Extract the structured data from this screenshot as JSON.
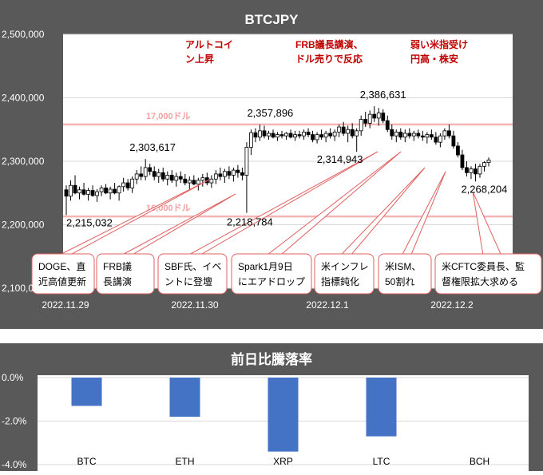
{
  "chart_data": [
    {
      "type": "candlestick",
      "title": "BTCJPY",
      "ylim": [
        2100000,
        2500000
      ],
      "yticks": [
        "2,100,000",
        "2,200,000",
        "2,300,000",
        "2,400,000",
        "2,500,000"
      ],
      "xticks": [
        "2022.11.29",
        "2022.11.30",
        "2022.12.1",
        "2022.12.2"
      ],
      "reference_lines": [
        {
          "label": "17,000ドル",
          "value": 2358000
        },
        {
          "label": "16,000ドル",
          "value": 2213000
        }
      ],
      "labeled_prices": [
        {
          "text": "2,215,032",
          "value": 2215032,
          "index": 0,
          "side": "low"
        },
        {
          "text": "2,303,617",
          "value": 2303617,
          "index": 18,
          "side": "high"
        },
        {
          "text": "2,218,784",
          "value": 2218784,
          "index": 41,
          "side": "low"
        },
        {
          "text": "2,357,896",
          "value": 2357896,
          "index": 44,
          "side": "high"
        },
        {
          "text": "2,314,943",
          "value": 2314943,
          "index": 66,
          "side": "low"
        },
        {
          "text": "2,386,631",
          "value": 2386631,
          "index": 70,
          "side": "high"
        },
        {
          "text": "2,268,204",
          "value": 2268204,
          "index": 93,
          "side": "low"
        }
      ],
      "candles": [
        [
          2255000,
          2262000,
          2215032,
          2245000
        ],
        [
          2245000,
          2270000,
          2238000,
          2262000
        ],
        [
          2262000,
          2278000,
          2248000,
          2250000
        ],
        [
          2250000,
          2260000,
          2240000,
          2255000
        ],
        [
          2255000,
          2266000,
          2246000,
          2248000
        ],
        [
          2248000,
          2258000,
          2238000,
          2254000
        ],
        [
          2254000,
          2262000,
          2244000,
          2246000
        ],
        [
          2246000,
          2256000,
          2236000,
          2252000
        ],
        [
          2252000,
          2262000,
          2245000,
          2258000
        ],
        [
          2258000,
          2264000,
          2248000,
          2250000
        ],
        [
          2250000,
          2260000,
          2240000,
          2256000
        ],
        [
          2256000,
          2266000,
          2248000,
          2250000
        ],
        [
          2250000,
          2262000,
          2238000,
          2260000
        ],
        [
          2260000,
          2274000,
          2252000,
          2266000
        ],
        [
          2266000,
          2272000,
          2254000,
          2258000
        ],
        [
          2258000,
          2276000,
          2250000,
          2272000
        ],
        [
          2272000,
          2286000,
          2264000,
          2280000
        ],
        [
          2280000,
          2292000,
          2270000,
          2276000
        ],
        [
          2276000,
          2303617,
          2270000,
          2290000
        ],
        [
          2290000,
          2296000,
          2278000,
          2284000
        ],
        [
          2284000,
          2292000,
          2270000,
          2276000
        ],
        [
          2276000,
          2288000,
          2266000,
          2282000
        ],
        [
          2282000,
          2290000,
          2268000,
          2272000
        ],
        [
          2272000,
          2284000,
          2262000,
          2278000
        ],
        [
          2278000,
          2286000,
          2266000,
          2270000
        ],
        [
          2270000,
          2282000,
          2260000,
          2276000
        ],
        [
          2276000,
          2284000,
          2266000,
          2272000
        ],
        [
          2272000,
          2280000,
          2262000,
          2266000
        ],
        [
          2266000,
          2276000,
          2256000,
          2270000
        ],
        [
          2270000,
          2278000,
          2262000,
          2264000
        ],
        [
          2264000,
          2274000,
          2254000,
          2270000
        ],
        [
          2270000,
          2280000,
          2260000,
          2274000
        ],
        [
          2274000,
          2282000,
          2262000,
          2266000
        ],
        [
          2266000,
          2278000,
          2258000,
          2272000
        ],
        [
          2272000,
          2286000,
          2264000,
          2280000
        ],
        [
          2280000,
          2290000,
          2270000,
          2276000
        ],
        [
          2276000,
          2288000,
          2266000,
          2284000
        ],
        [
          2284000,
          2292000,
          2272000,
          2278000
        ],
        [
          2278000,
          2290000,
          2268000,
          2286000
        ],
        [
          2286000,
          2294000,
          2274000,
          2282000
        ],
        [
          2282000,
          2290000,
          2270000,
          2278000
        ],
        [
          2278000,
          2330000,
          2218784,
          2322000
        ],
        [
          2322000,
          2350000,
          2310000,
          2345000
        ],
        [
          2345000,
          2352000,
          2330000,
          2338000
        ],
        [
          2338000,
          2357896,
          2332000,
          2348000
        ],
        [
          2348000,
          2356000,
          2336000,
          2340000
        ],
        [
          2340000,
          2348000,
          2334000,
          2344000
        ],
        [
          2344000,
          2350000,
          2336000,
          2338000
        ],
        [
          2338000,
          2346000,
          2332000,
          2342000
        ],
        [
          2342000,
          2348000,
          2336000,
          2340000
        ],
        [
          2340000,
          2346000,
          2334000,
          2344000
        ],
        [
          2344000,
          2350000,
          2336000,
          2338000
        ],
        [
          2338000,
          2348000,
          2332000,
          2342000
        ],
        [
          2342000,
          2348000,
          2336000,
          2340000
        ],
        [
          2340000,
          2350000,
          2334000,
          2346000
        ],
        [
          2346000,
          2352000,
          2338000,
          2342000
        ],
        [
          2342000,
          2348000,
          2330000,
          2334000
        ],
        [
          2334000,
          2346000,
          2328000,
          2342000
        ],
        [
          2342000,
          2350000,
          2334000,
          2338000
        ],
        [
          2338000,
          2348000,
          2330000,
          2344000
        ],
        [
          2344000,
          2352000,
          2336000,
          2340000
        ],
        [
          2340000,
          2350000,
          2332000,
          2346000
        ],
        [
          2346000,
          2358000,
          2338000,
          2354000
        ],
        [
          2354000,
          2362000,
          2340000,
          2344000
        ],
        [
          2344000,
          2356000,
          2330000,
          2350000
        ],
        [
          2350000,
          2360000,
          2336000,
          2340000
        ],
        [
          2340000,
          2352000,
          2314943,
          2348000
        ],
        [
          2348000,
          2372000,
          2340000,
          2366000
        ],
        [
          2366000,
          2378000,
          2354000,
          2360000
        ],
        [
          2360000,
          2380000,
          2352000,
          2374000
        ],
        [
          2374000,
          2386631,
          2362000,
          2368000
        ],
        [
          2368000,
          2384000,
          2356000,
          2376000
        ],
        [
          2376000,
          2382000,
          2360000,
          2364000
        ],
        [
          2364000,
          2372000,
          2346000,
          2350000
        ],
        [
          2350000,
          2358000,
          2334000,
          2340000
        ],
        [
          2340000,
          2350000,
          2330000,
          2346000
        ],
        [
          2346000,
          2352000,
          2334000,
          2338000
        ],
        [
          2338000,
          2350000,
          2330000,
          2344000
        ],
        [
          2344000,
          2352000,
          2336000,
          2340000
        ],
        [
          2340000,
          2348000,
          2332000,
          2344000
        ],
        [
          2344000,
          2350000,
          2336000,
          2340000
        ],
        [
          2340000,
          2348000,
          2332000,
          2338000
        ],
        [
          2338000,
          2346000,
          2328000,
          2342000
        ],
        [
          2342000,
          2350000,
          2334000,
          2338000
        ],
        [
          2338000,
          2346000,
          2326000,
          2330000
        ],
        [
          2330000,
          2344000,
          2322000,
          2340000
        ],
        [
          2340000,
          2352000,
          2334000,
          2348000
        ],
        [
          2348000,
          2358000,
          2336000,
          2340000
        ],
        [
          2340000,
          2348000,
          2320000,
          2324000
        ],
        [
          2324000,
          2330000,
          2306000,
          2310000
        ],
        [
          2310000,
          2318000,
          2286000,
          2290000
        ],
        [
          2290000,
          2300000,
          2276000,
          2282000
        ],
        [
          2282000,
          2292000,
          2272000,
          2288000
        ],
        [
          2288000,
          2296000,
          2268204,
          2280000
        ],
        [
          2280000,
          2296000,
          2274000,
          2292000
        ],
        [
          2292000,
          2300000,
          2284000,
          2298000
        ],
        [
          2298000,
          2306000,
          2292000,
          2302000
        ]
      ],
      "annotations_red": [
        {
          "lines": [
            "アルトコイ",
            "ン上昇"
          ]
        },
        {
          "lines": [
            "FRB議長講演、",
            "ドル売りで反応"
          ]
        },
        {
          "lines": [
            "弱い米指受け",
            "円高・株安"
          ]
        }
      ],
      "callouts": [
        {
          "lines": [
            "DOGE、直",
            "近高値更新"
          ],
          "target_index": 17
        },
        {
          "lines": [
            "FRB議",
            "長講演"
          ],
          "target_index": 41
        },
        {
          "lines": [
            "SBF氏、イベ",
            "ントに登壇"
          ],
          "target_index": 63
        },
        {
          "lines": [
            "Spark1月9日",
            "にエアドロップ"
          ],
          "target_index": 70
        },
        {
          "lines": [
            "米インフレ",
            "指標鈍化"
          ],
          "target_index": 76
        },
        {
          "lines": [
            "米ISM、",
            "50割れ"
          ],
          "target_index": 83
        },
        {
          "lines": [
            "米CFTC委員長、監",
            "督権限拡大求める"
          ],
          "target_index": 90
        }
      ]
    },
    {
      "type": "bar",
      "title": "前日比騰落率",
      "categories": [
        "BTC",
        "ETH",
        "XRP",
        "LTC",
        "BCH"
      ],
      "values": [
        -1.3,
        -1.8,
        -3.4,
        -2.7,
        0.0
      ],
      "ylim": [
        -4.0,
        0.0
      ],
      "yticks": [
        "0.0%",
        "-2.0%",
        "-4.0%"
      ],
      "bar_color": "#4472c4"
    }
  ]
}
